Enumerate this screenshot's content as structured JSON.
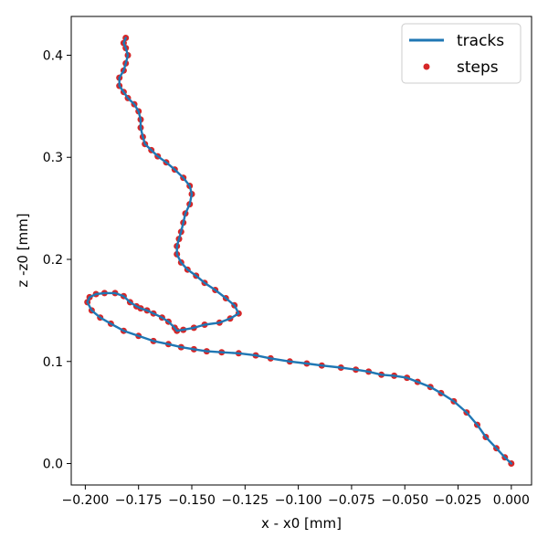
{
  "chart_data": {
    "type": "line",
    "xlabel": "x - x0 [mm]",
    "ylabel": "z -z0 [mm]",
    "xlim": [
      -0.2066,
      0.0095
    ],
    "ylim": [
      -0.021,
      0.438
    ],
    "xticks": [
      -0.2,
      -0.175,
      -0.15,
      -0.125,
      -0.1,
      -0.075,
      -0.05,
      -0.025,
      0.0
    ],
    "xtick_labels": [
      "−0.200",
      "−0.175",
      "−0.150",
      "−0.125",
      "−0.100",
      "−0.075",
      "−0.050",
      "−0.025",
      "0.000"
    ],
    "yticks": [
      0.0,
      0.1,
      0.2,
      0.3,
      0.4
    ],
    "ytick_labels": [
      "0.0",
      "0.1",
      "0.2",
      "0.3",
      "0.4"
    ],
    "grid": false,
    "legend": {
      "position": "top-right",
      "entries": [
        {
          "label": "tracks",
          "style": "line",
          "color": "#1f77b4"
        },
        {
          "label": "steps",
          "style": "marker",
          "color": "#d62728"
        }
      ]
    },
    "series": [
      {
        "name": "tracks",
        "color": "#1f77b4",
        "x": [
          0.0,
          -0.003,
          -0.007,
          -0.012,
          -0.016,
          -0.021,
          -0.027,
          -0.033,
          -0.038,
          -0.044,
          -0.049,
          -0.055,
          -0.061,
          -0.067,
          -0.073,
          -0.08,
          -0.089,
          -0.096,
          -0.104,
          -0.113,
          -0.12,
          -0.128,
          -0.136,
          -0.143,
          -0.149,
          -0.155,
          -0.161,
          -0.168,
          -0.175,
          -0.182,
          -0.188,
          -0.193,
          -0.197,
          -0.199,
          -0.198,
          -0.195,
          -0.191,
          -0.186,
          -0.182,
          -0.179,
          -0.176,
          -0.174,
          -0.171,
          -0.168,
          -0.164,
          -0.161,
          -0.158,
          -0.157,
          -0.154,
          -0.149,
          -0.144,
          -0.137,
          -0.132,
          -0.128,
          -0.13,
          -0.134,
          -0.139,
          -0.144,
          -0.148,
          -0.152,
          -0.155,
          -0.157,
          -0.157,
          -0.156,
          -0.155,
          -0.154,
          -0.153,
          -0.151,
          -0.15,
          -0.151,
          -0.154,
          -0.158,
          -0.162,
          -0.166,
          -0.169,
          -0.172,
          -0.173,
          -0.174,
          -0.174,
          -0.175,
          -0.177,
          -0.18,
          -0.182,
          -0.184,
          -0.184,
          -0.182,
          -0.181,
          -0.18,
          -0.181,
          -0.182,
          -0.181
        ],
        "y": [
          0.0,
          0.006,
          0.015,
          0.026,
          0.038,
          0.05,
          0.061,
          0.069,
          0.075,
          0.08,
          0.084,
          0.086,
          0.087,
          0.09,
          0.092,
          0.094,
          0.096,
          0.098,
          0.1,
          0.103,
          0.106,
          0.108,
          0.109,
          0.11,
          0.112,
          0.114,
          0.117,
          0.12,
          0.125,
          0.13,
          0.137,
          0.143,
          0.15,
          0.158,
          0.163,
          0.166,
          0.167,
          0.167,
          0.164,
          0.158,
          0.154,
          0.152,
          0.15,
          0.147,
          0.143,
          0.139,
          0.133,
          0.13,
          0.131,
          0.133,
          0.136,
          0.138,
          0.142,
          0.147,
          0.155,
          0.162,
          0.17,
          0.177,
          0.184,
          0.19,
          0.197,
          0.205,
          0.213,
          0.22,
          0.227,
          0.236,
          0.245,
          0.254,
          0.264,
          0.272,
          0.28,
          0.288,
          0.295,
          0.301,
          0.307,
          0.313,
          0.32,
          0.329,
          0.337,
          0.345,
          0.352,
          0.358,
          0.364,
          0.37,
          0.378,
          0.385,
          0.392,
          0.4,
          0.407,
          0.412,
          0.417
        ]
      }
    ]
  }
}
